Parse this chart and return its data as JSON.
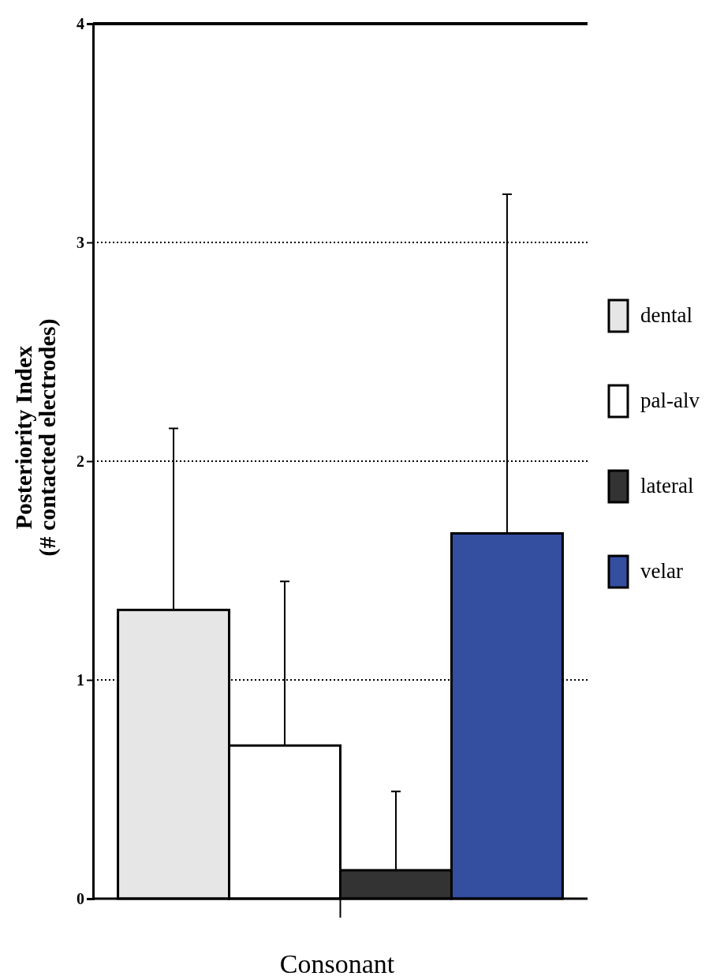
{
  "chart_data": {
    "type": "bar",
    "xlabel": "Consonant",
    "ylabel": "Posteriority Index\n(# contacted electrodes)",
    "categories": [
      null
    ],
    "series": [
      {
        "name": "dental",
        "color": "#e6e6e6",
        "values": [
          1.32
        ],
        "errors": [
          [
            1.32,
            2.15
          ]
        ]
      },
      {
        "name": "pal-alv",
        "color": "#ffffff",
        "values": [
          0.7
        ],
        "errors": [
          [
            0.7,
            1.45
          ]
        ]
      },
      {
        "name": "lateral",
        "color": "#333333",
        "values": [
          0.13
        ],
        "errors": [
          [
            0.13,
            0.49
          ]
        ]
      },
      {
        "name": "velar",
        "color": "#344ea0",
        "values": [
          1.67
        ],
        "errors": [
          [
            1.67,
            3.22
          ]
        ]
      }
    ],
    "ylim": [
      0,
      4
    ],
    "yticks": [
      0,
      1,
      2,
      3,
      4
    ],
    "grid": "y",
    "legend": "right"
  }
}
